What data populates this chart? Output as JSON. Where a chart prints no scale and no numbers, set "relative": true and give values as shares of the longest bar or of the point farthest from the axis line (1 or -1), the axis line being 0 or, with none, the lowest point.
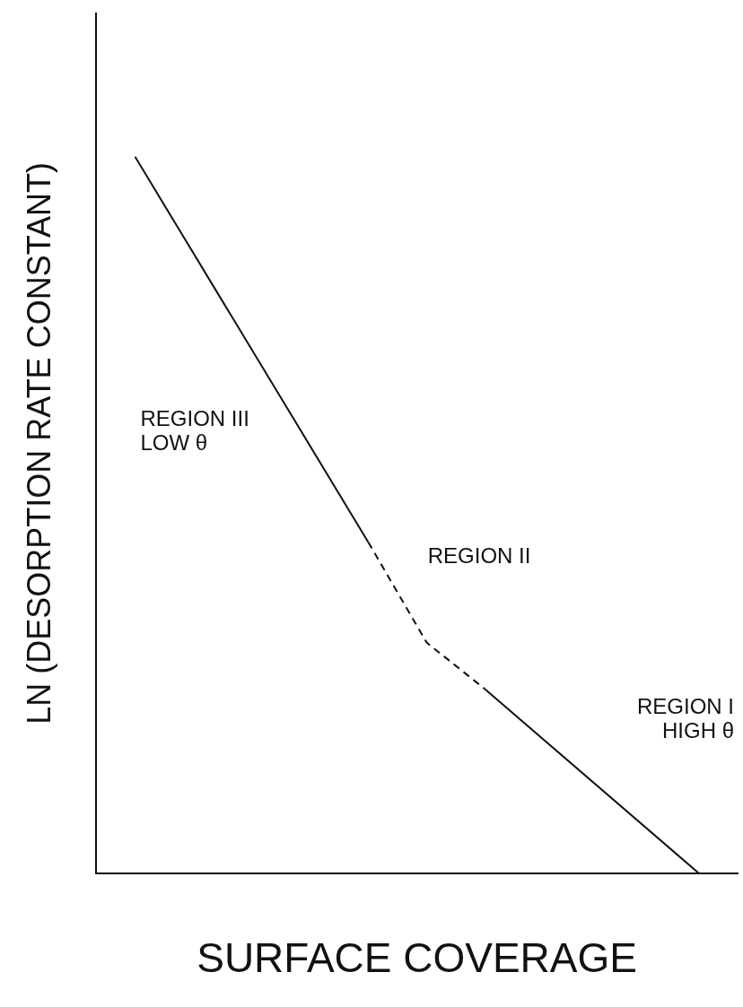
{
  "chart_data": {
    "type": "line",
    "relative": true,
    "xlabel": "SURFACE COVERAGE",
    "ylabel": "LN (DESORPTION RATE CONSTANT)",
    "categories": [
      null,
      null,
      null,
      null,
      null,
      null,
      null,
      null,
      null,
      null,
      null,
      null,
      null,
      null,
      null,
      null,
      null,
      null,
      null,
      null,
      null,
      null,
      null,
      null,
      null,
      null,
      null,
      null,
      null,
      null,
      null,
      null,
      null,
      null
    ],
    "grid": false,
    "legend": false,
    "marker": "none",
    "series": [
      {
        "color": "#111111",
        "line_style": "solid",
        "values": [
          null,
          null,
          1,
          null,
          null,
          null,
          null,
          null,
          null,
          null,
          null,
          null,
          null,
          null,
          0.462,
          null,
          null,
          null,
          null,
          null,
          null,
          null,
          null,
          null,
          null,
          null,
          null,
          null,
          null,
          null,
          null,
          null,
          null,
          null
        ]
      },
      {
        "color": "#111111",
        "line_style": "dashed",
        "values": [
          null,
          null,
          null,
          null,
          null,
          null,
          null,
          null,
          null,
          null,
          null,
          null,
          null,
          null,
          0.462,
          null,
          null,
          0.322,
          null,
          null,
          0.257,
          null,
          null,
          null,
          null,
          null,
          null,
          null,
          null,
          null,
          null,
          null,
          null,
          null
        ]
      },
      {
        "color": "#111111",
        "line_style": "solid",
        "values": [
          null,
          null,
          null,
          null,
          null,
          null,
          null,
          null,
          null,
          null,
          null,
          null,
          null,
          null,
          null,
          null,
          null,
          null,
          null,
          null,
          0.257,
          null,
          null,
          null,
          null,
          null,
          null,
          null,
          null,
          null,
          null,
          0,
          null,
          null
        ]
      }
    ],
    "annotations": [
      "REGION III\nLOW θ",
      "REGION II",
      "REGION I\nHIGH θ"
    ]
  }
}
